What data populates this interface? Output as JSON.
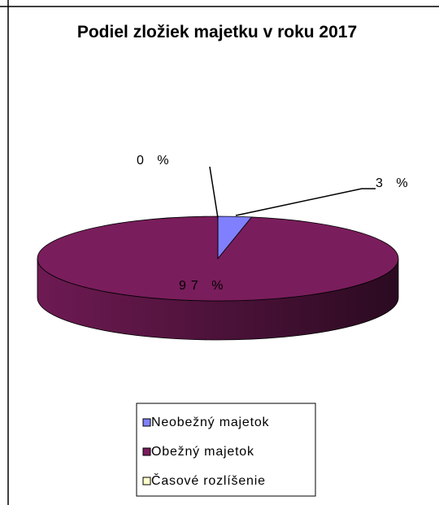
{
  "chart_data": {
    "type": "pie",
    "title": "Podiel zložiek majetku v roku 2017",
    "categories": [
      "Neobežný majetok",
      "Obežný majetok",
      "Časové rozlíšenie"
    ],
    "values": [
      3,
      97,
      0
    ],
    "value_labels": [
      "3 %",
      "97 %",
      "0 %"
    ],
    "colors": [
      "#8080ff",
      "#7a1d5c",
      "#ffffcc"
    ]
  }
}
